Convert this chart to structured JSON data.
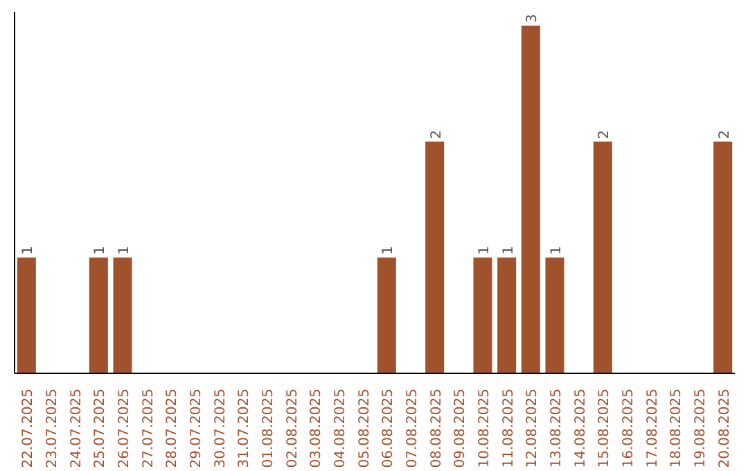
{
  "chart_data": {
    "type": "bar",
    "categories": [
      "22.07.2025",
      "23.07.2025",
      "24.07.2025",
      "25.07.2025",
      "26.07.2025",
      "27.07.2025",
      "28.07.2025",
      "29.07.2025",
      "30.07.2025",
      "31.07.2025",
      "01.08.2025",
      "02.08.2025",
      "03.08.2025",
      "04.08.2025",
      "05.08.2025",
      "06.08.2025",
      "07.08.2025",
      "08.08.2025",
      "09.08.2025",
      "10.08.2025",
      "11.08.2025",
      "12.08.2025",
      "13.08.2025",
      "14.08.2025",
      "15.08.2025",
      "16.08.2025",
      "17.08.2025",
      "18.08.2025",
      "19.08.2025",
      "20.08.2025"
    ],
    "values": [
      1,
      0,
      0,
      1,
      1,
      0,
      0,
      0,
      0,
      0,
      0,
      0,
      0,
      0,
      0,
      1,
      0,
      2,
      0,
      1,
      1,
      3,
      1,
      0,
      2,
      0,
      0,
      0,
      0,
      2
    ],
    "value_labels": [
      "1",
      null,
      null,
      "1",
      "1",
      null,
      null,
      null,
      null,
      null,
      null,
      null,
      null,
      null,
      null,
      "1",
      null,
      "2",
      null,
      "1",
      "1",
      "3",
      "1",
      null,
      "2",
      null,
      null,
      null,
      null,
      "2"
    ],
    "color": "#a0522d",
    "grid": false,
    "tick_labels": "x"
  }
}
